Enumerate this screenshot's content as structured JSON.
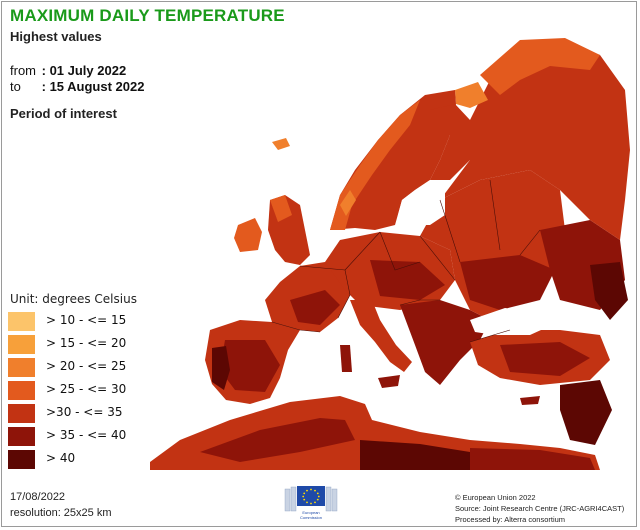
{
  "header": {
    "title": "MAXIMUM DAILY TEMPERATURE",
    "subtitle": "Highest values",
    "from_label": "from",
    "from_value": ": 01 July 2022",
    "to_label": "to",
    "to_value": ": 15 August 2022",
    "period_label": "Period of interest"
  },
  "legend": {
    "unit": "Unit: degrees Celsius",
    "items": [
      {
        "label": "> 10 - <= 15",
        "color": "#fcc46a"
      },
      {
        "label": "> 15 - <= 20",
        "color": "#f7a03a"
      },
      {
        "label": "> 20 - <= 25",
        "color": "#f07f2c"
      },
      {
        "label": "> 25 - <= 30",
        "color": "#e35a1e"
      },
      {
        "label": ">30 - <= 35",
        "color": "#c23313"
      },
      {
        "label": "> 35 - <= 40",
        "color": "#8e1409"
      },
      {
        "label": "> 40",
        "color": "#5c0703"
      }
    ]
  },
  "footer": {
    "date": "17/08/2022",
    "resolution": "resolution: 25x25 km",
    "copyright": "© European Union 2022",
    "source": "Source: Joint Research Centre (JRC-AGRI4CAST)",
    "processed": "Processed by: Alterra consortium",
    "logo_text_1": "European",
    "logo_text_2": "Commission"
  },
  "map": {
    "colors": {
      "sea": "#ffffff",
      "land_base": "#c23313",
      "hot": "#8e1409",
      "very_hot": "#5c0703",
      "warm": "#e35a1e",
      "mild": "#f07f2c",
      "cool": "#f7a03a",
      "borders": "#4a0e08",
      "outside": "#fbe3d2"
    }
  }
}
